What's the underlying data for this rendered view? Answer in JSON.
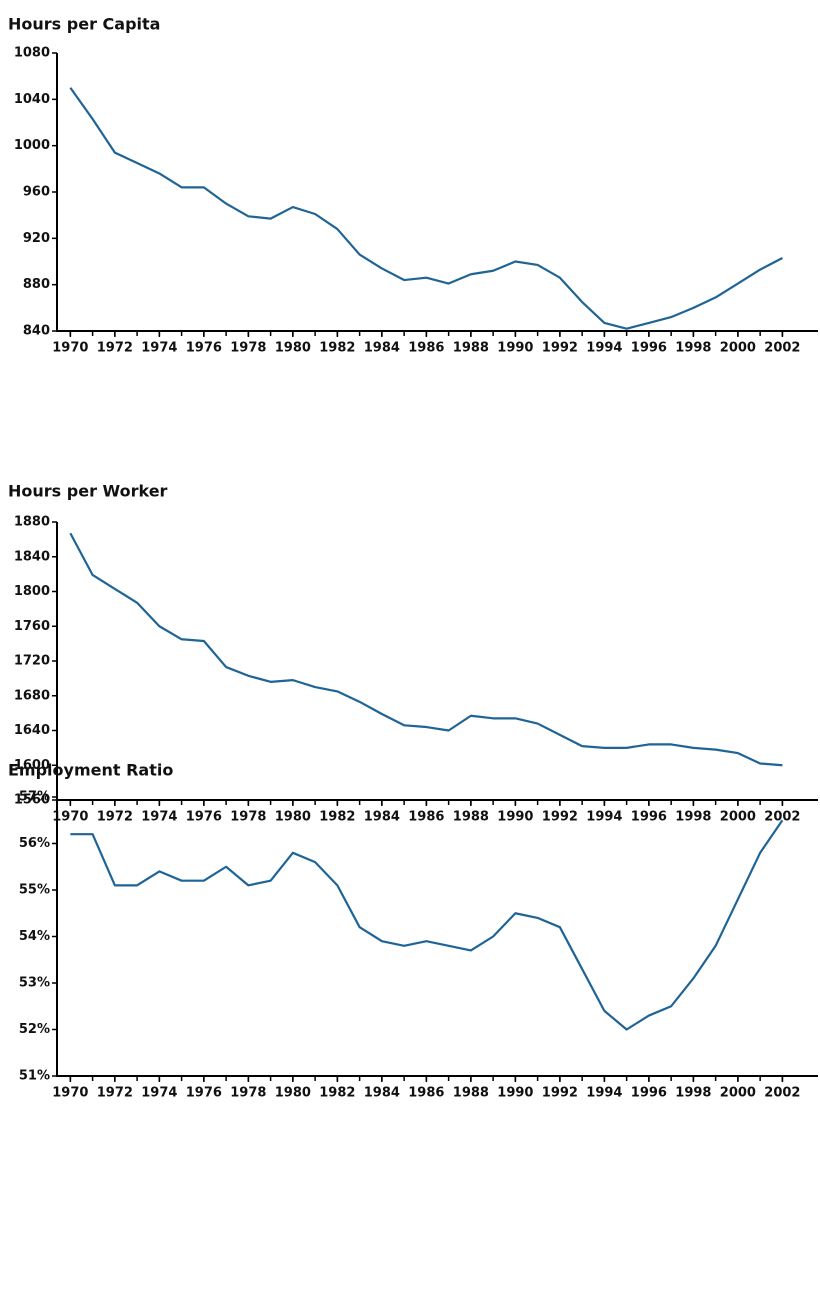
{
  "chart_data": [
    {
      "type": "line",
      "title": "Hours per Capita",
      "x": [
        1970,
        1971,
        1972,
        1973,
        1974,
        1975,
        1976,
        1977,
        1978,
        1979,
        1980,
        1981,
        1982,
        1983,
        1984,
        1985,
        1986,
        1987,
        1988,
        1989,
        1990,
        1991,
        1992,
        1993,
        1994,
        1995,
        1996,
        1997,
        1998,
        1999,
        2000,
        2001,
        2002
      ],
      "series": [
        {
          "name": "Hours per Capita",
          "color": "#1f6496",
          "values": [
            1050,
            1023,
            994,
            985,
            976,
            964,
            964,
            950,
            939,
            937,
            947,
            941,
            928,
            906,
            894,
            884,
            886,
            881,
            889,
            892,
            900,
            897,
            886,
            865,
            847,
            842,
            847,
            852,
            860,
            869,
            881,
            893,
            903
          ]
        }
      ],
      "xlim": [
        1969.4,
        2003.6
      ],
      "xticks": [
        1970,
        1972,
        1974,
        1976,
        1978,
        1980,
        1982,
        1984,
        1986,
        1988,
        1990,
        1992,
        1994,
        1996,
        1998,
        2000,
        2002
      ],
      "ylim": [
        840,
        1080
      ],
      "yticks": [
        840,
        880,
        920,
        960,
        1000,
        1040,
        1080
      ]
    },
    {
      "type": "line",
      "title": "Hours per Worker",
      "x": [
        1970,
        1971,
        1972,
        1973,
        1974,
        1975,
        1976,
        1977,
        1978,
        1979,
        1980,
        1981,
        1982,
        1983,
        1984,
        1985,
        1986,
        1987,
        1988,
        1989,
        1990,
        1991,
        1992,
        1993,
        1994,
        1995,
        1996,
        1997,
        1998,
        1999,
        2000,
        2001,
        2002
      ],
      "series": [
        {
          "name": "Hours per Worker",
          "color": "#1f6496",
          "values": [
            1867,
            1819,
            1803,
            1787,
            1760,
            1745,
            1743,
            1713,
            1703,
            1696,
            1698,
            1690,
            1685,
            1673,
            1659,
            1646,
            1644,
            1640,
            1657,
            1654,
            1654,
            1648,
            1635,
            1622,
            1620,
            1620,
            1624,
            1624,
            1620,
            1618,
            1614,
            1602,
            1600
          ]
        }
      ],
      "xlim": [
        1969.4,
        2003.6
      ],
      "xticks": [
        1970,
        1972,
        1974,
        1976,
        1978,
        1980,
        1982,
        1984,
        1986,
        1988,
        1990,
        1992,
        1994,
        1996,
        1998,
        2000,
        2002
      ],
      "ylim": [
        1560,
        1880
      ],
      "yticks": [
        1560,
        1600,
        1640,
        1680,
        1720,
        1760,
        1800,
        1840,
        1880
      ]
    },
    {
      "type": "line",
      "title": "Employment Ratio",
      "x": [
        1970,
        1971,
        1972,
        1973,
        1974,
        1975,
        1976,
        1977,
        1978,
        1979,
        1980,
        1981,
        1982,
        1983,
        1984,
        1985,
        1986,
        1987,
        1988,
        1989,
        1990,
        1991,
        1992,
        1993,
        1994,
        1995,
        1996,
        1997,
        1998,
        1999,
        2000,
        2001,
        2002
      ],
      "series": [
        {
          "name": "Employment Ratio",
          "color": "#1f6496",
          "values": [
            56.2,
            56.2,
            55.1,
            55.1,
            55.4,
            55.2,
            55.2,
            55.5,
            55.1,
            55.2,
            55.8,
            55.6,
            55.1,
            54.2,
            53.9,
            53.8,
            53.9,
            53.8,
            53.7,
            54.0,
            54.5,
            54.4,
            54.2,
            53.3,
            52.4,
            52.0,
            52.3,
            52.5,
            53.1,
            53.8,
            54.8,
            55.8,
            56.5
          ]
        }
      ],
      "xlim": [
        1969.4,
        2003.6
      ],
      "xticks": [
        1970,
        1972,
        1974,
        1976,
        1978,
        1980,
        1982,
        1984,
        1986,
        1988,
        1990,
        1992,
        1994,
        1996,
        1998,
        2000,
        2002
      ],
      "ylim": [
        51,
        57
      ],
      "yticks": [
        {
          "value": 51,
          "label": "51%"
        },
        {
          "value": 52,
          "label": "52%"
        },
        {
          "value": 53,
          "label": "53%"
        },
        {
          "value": 54,
          "label": "54%"
        },
        {
          "value": 55,
          "label": "55%"
        },
        {
          "value": 56,
          "label": "56%"
        },
        {
          "value": 57,
          "label": "57%"
        }
      ]
    }
  ]
}
